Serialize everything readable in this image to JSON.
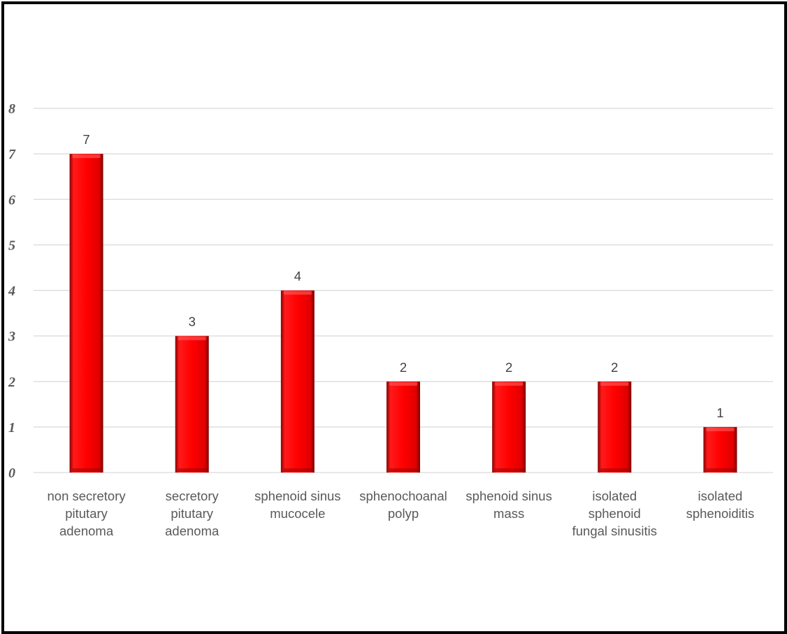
{
  "chart_data": {
    "type": "bar",
    "title": "",
    "xlabel": "",
    "ylabel": "",
    "ylim": [
      0,
      8
    ],
    "y_ticks": [
      "0",
      "1",
      "2",
      "3",
      "4",
      "5",
      "6",
      "7",
      "8"
    ],
    "grid": true,
    "legend": "none",
    "bar_color": "#ff0000",
    "categories": [
      [
        "non secretory",
        "pitutary",
        "adenoma"
      ],
      [
        "secretory",
        "pitutary",
        "adenoma"
      ],
      [
        "sphenoid sinus",
        "mucocele"
      ],
      [
        "sphenochoanal",
        "polyp"
      ],
      [
        "sphenoid sinus",
        "mass"
      ],
      [
        "isolated",
        "sphenoid",
        "fungal sinusitis"
      ],
      [
        "isolated",
        "sphenoiditis"
      ]
    ],
    "values": [
      7,
      3,
      4,
      2,
      2,
      2,
      1
    ],
    "data_labels": [
      "7",
      "3",
      "4",
      "2",
      "2",
      "2",
      "1"
    ]
  }
}
